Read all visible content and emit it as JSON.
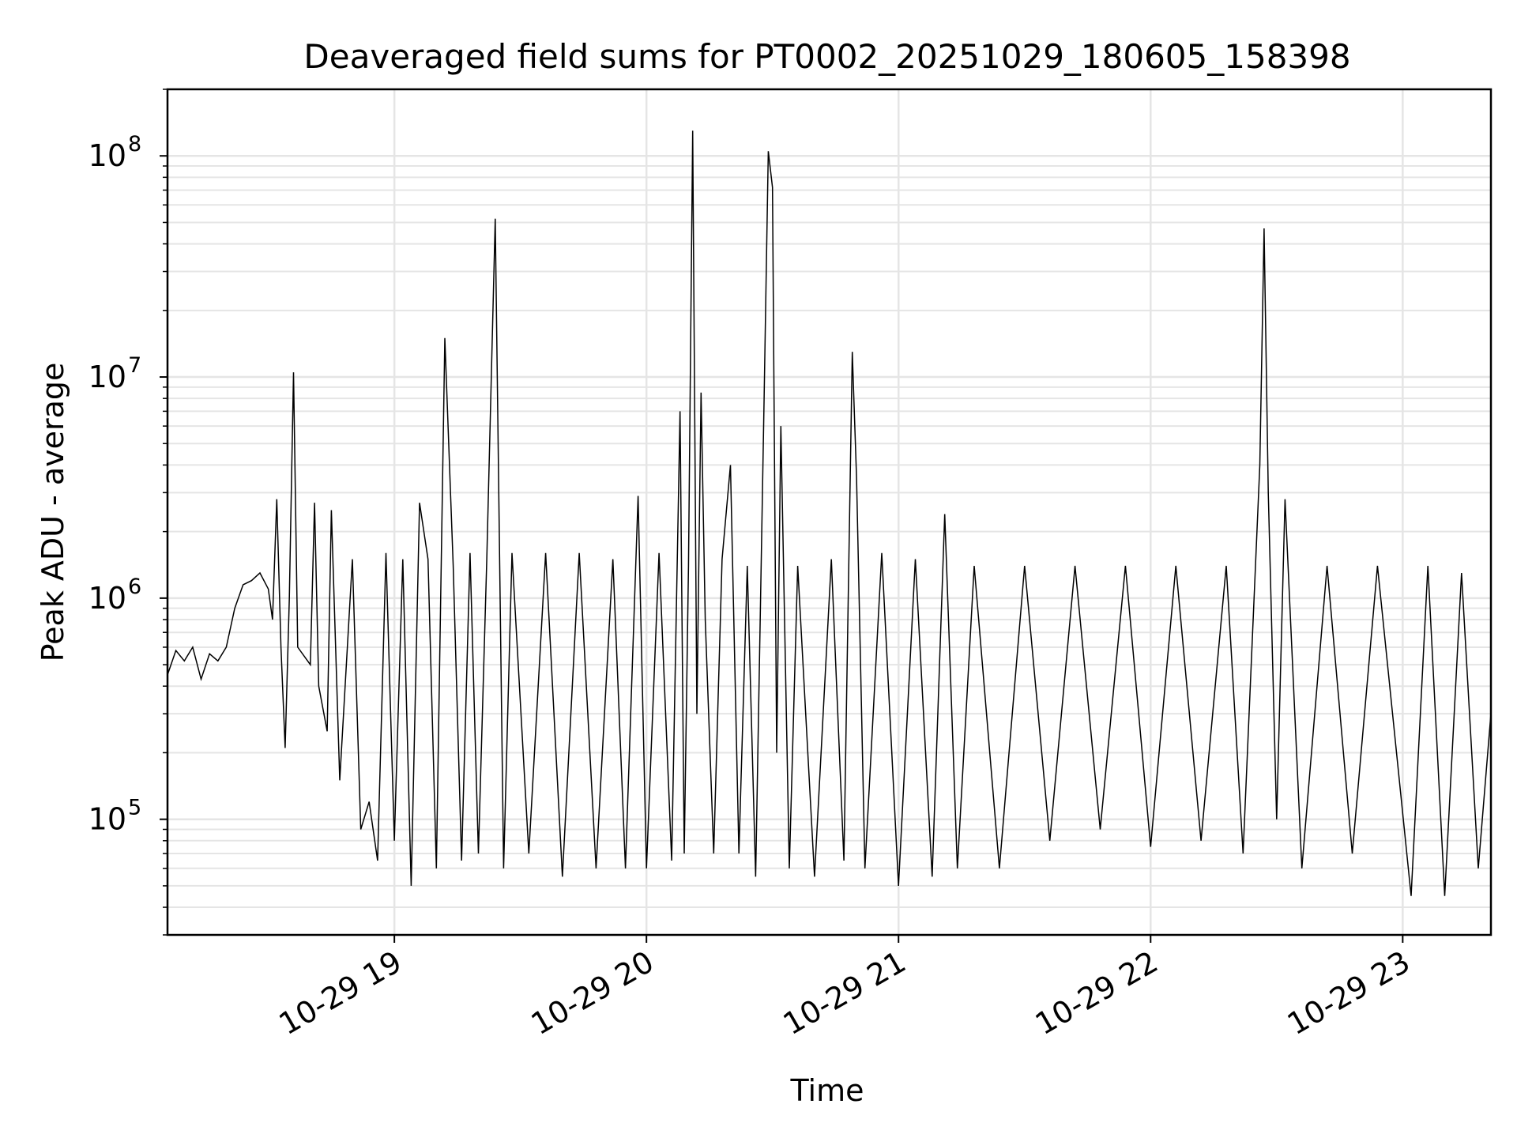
{
  "chart_data": {
    "type": "line",
    "title": "Deaveraged field sums for PT0002_20251029_180605_158398",
    "xlabel": "Time",
    "ylabel": "Peak ADU - average",
    "y_scale": "log",
    "ylim": [
      30000,
      200000000
    ],
    "xlim": [
      "2025-10-29 18:06",
      "2025-10-29 23:21"
    ],
    "x_ticks": [
      {
        "t": "2025-10-29 19:00",
        "label": "10-29 19"
      },
      {
        "t": "2025-10-29 20:00",
        "label": "10-29 20"
      },
      {
        "t": "2025-10-29 21:00",
        "label": "10-29 21"
      },
      {
        "t": "2025-10-29 22:00",
        "label": "10-29 22"
      },
      {
        "t": "2025-10-29 23:00",
        "label": "10-29 23"
      }
    ],
    "y_ticks": [
      {
        "value": 100000,
        "base": "10",
        "exp": "5"
      },
      {
        "value": 1000000,
        "base": "10",
        "exp": "6"
      },
      {
        "value": 10000000,
        "base": "10",
        "exp": "7"
      },
      {
        "value": 100000000,
        "base": "10",
        "exp": "8"
      }
    ],
    "grid": true,
    "line_color": "#000000",
    "grid_color": "#e5e5e5",
    "series": [
      {
        "points": [
          [
            "2025-10-29 18:06",
            450000
          ],
          [
            "2025-10-29 18:08",
            580000
          ],
          [
            "2025-10-29 18:10",
            520000
          ],
          [
            "2025-10-29 18:12",
            600000
          ],
          [
            "2025-10-29 18:14",
            430000
          ],
          [
            "2025-10-29 18:16",
            560000
          ],
          [
            "2025-10-29 18:18",
            520000
          ],
          [
            "2025-10-29 18:20",
            600000
          ],
          [
            "2025-10-29 18:22",
            900000
          ],
          [
            "2025-10-29 18:24",
            1150000
          ],
          [
            "2025-10-29 18:26",
            1200000
          ],
          [
            "2025-10-29 18:28",
            1300000
          ],
          [
            "2025-10-29 18:30",
            1100000
          ],
          [
            "2025-10-29 18:31",
            800000
          ],
          [
            "2025-10-29 18:32",
            2800000
          ],
          [
            "2025-10-29 18:33",
            600000
          ],
          [
            "2025-10-29 18:34",
            210000
          ],
          [
            "2025-10-29 18:35",
            1000000
          ],
          [
            "2025-10-29 18:36",
            10500000
          ],
          [
            "2025-10-29 18:37",
            600000
          ],
          [
            "2025-10-29 18:40",
            500000
          ],
          [
            "2025-10-29 18:41",
            2700000
          ],
          [
            "2025-10-29 18:42",
            400000
          ],
          [
            "2025-10-29 18:44",
            250000
          ],
          [
            "2025-10-29 18:45",
            2500000
          ],
          [
            "2025-10-29 18:47",
            150000
          ],
          [
            "2025-10-29 18:50",
            1500000
          ],
          [
            "2025-10-29 18:52",
            90000
          ],
          [
            "2025-10-29 18:54",
            120000
          ],
          [
            "2025-10-29 18:56",
            65000
          ],
          [
            "2025-10-29 18:58",
            1600000
          ],
          [
            "2025-10-29 19:00",
            80000
          ],
          [
            "2025-10-29 19:02",
            1500000
          ],
          [
            "2025-10-29 19:04",
            50000
          ],
          [
            "2025-10-29 19:06",
            2700000
          ],
          [
            "2025-10-29 19:08",
            1500000
          ],
          [
            "2025-10-29 19:10",
            60000
          ],
          [
            "2025-10-29 19:12",
            15000000
          ],
          [
            "2025-10-29 19:14",
            1400000
          ],
          [
            "2025-10-29 19:16",
            65000
          ],
          [
            "2025-10-29 19:18",
            1600000
          ],
          [
            "2025-10-29 19:20",
            70000
          ],
          [
            "2025-10-29 19:22",
            1500000
          ],
          [
            "2025-10-29 19:24",
            52000000
          ],
          [
            "2025-10-29 19:26",
            60000
          ],
          [
            "2025-10-29 19:28",
            1600000
          ],
          [
            "2025-10-29 19:32",
            70000
          ],
          [
            "2025-10-29 19:36",
            1600000
          ],
          [
            "2025-10-29 19:40",
            55000
          ],
          [
            "2025-10-29 19:44",
            1600000
          ],
          [
            "2025-10-29 19:48",
            60000
          ],
          [
            "2025-10-29 19:52",
            1500000
          ],
          [
            "2025-10-29 19:55",
            60000
          ],
          [
            "2025-10-29 19:58",
            2900000
          ],
          [
            "2025-10-29 20:00",
            60000
          ],
          [
            "2025-10-29 20:03",
            1600000
          ],
          [
            "2025-10-29 20:06",
            65000
          ],
          [
            "2025-10-29 20:08",
            7000000
          ],
          [
            "2025-10-29 20:09",
            70000
          ],
          [
            "2025-10-29 20:10",
            1400000
          ],
          [
            "2025-10-29 20:11",
            130000000
          ],
          [
            "2025-10-29 20:12",
            300000
          ],
          [
            "2025-10-29 20:13",
            8500000
          ],
          [
            "2025-10-29 20:14",
            800000
          ],
          [
            "2025-10-29 20:16",
            70000
          ],
          [
            "2025-10-29 20:18",
            1500000
          ],
          [
            "2025-10-29 20:20",
            4000000
          ],
          [
            "2025-10-29 20:22",
            70000
          ],
          [
            "2025-10-29 20:24",
            1400000
          ],
          [
            "2025-10-29 20:26",
            55000
          ],
          [
            "2025-10-29 20:28",
            8000000
          ],
          [
            "2025-10-29 20:29",
            105000000
          ],
          [
            "2025-10-29 20:30",
            72000000
          ],
          [
            "2025-10-29 20:31",
            200000
          ],
          [
            "2025-10-29 20:32",
            6000000
          ],
          [
            "2025-10-29 20:34",
            60000
          ],
          [
            "2025-10-29 20:36",
            1400000
          ],
          [
            "2025-10-29 20:40",
            55000
          ],
          [
            "2025-10-29 20:44",
            1500000
          ],
          [
            "2025-10-29 20:47",
            65000
          ],
          [
            "2025-10-29 20:49",
            13000000
          ],
          [
            "2025-10-29 20:50",
            3500000
          ],
          [
            "2025-10-29 20:52",
            60000
          ],
          [
            "2025-10-29 20:56",
            1600000
          ],
          [
            "2025-10-29 21:00",
            50000
          ],
          [
            "2025-10-29 21:04",
            1500000
          ],
          [
            "2025-10-29 21:08",
            55000
          ],
          [
            "2025-10-29 21:11",
            2400000
          ],
          [
            "2025-10-29 21:14",
            60000
          ],
          [
            "2025-10-29 21:18",
            1400000
          ],
          [
            "2025-10-29 21:24",
            60000
          ],
          [
            "2025-10-29 21:30",
            1400000
          ],
          [
            "2025-10-29 21:36",
            80000
          ],
          [
            "2025-10-29 21:42",
            1400000
          ],
          [
            "2025-10-29 21:48",
            90000
          ],
          [
            "2025-10-29 21:54",
            1400000
          ],
          [
            "2025-10-29 22:00",
            75000
          ],
          [
            "2025-10-29 22:06",
            1400000
          ],
          [
            "2025-10-29 22:12",
            80000
          ],
          [
            "2025-10-29 22:18",
            1400000
          ],
          [
            "2025-10-29 22:22",
            70000
          ],
          [
            "2025-10-29 22:26",
            4000000
          ],
          [
            "2025-10-29 22:27",
            47000000
          ],
          [
            "2025-10-29 22:28",
            3000000
          ],
          [
            "2025-10-29 22:30",
            100000
          ],
          [
            "2025-10-29 22:32",
            2800000
          ],
          [
            "2025-10-29 22:36",
            60000
          ],
          [
            "2025-10-29 22:42",
            1400000
          ],
          [
            "2025-10-29 22:48",
            70000
          ],
          [
            "2025-10-29 22:54",
            1400000
          ],
          [
            "2025-10-29 23:02",
            45000
          ],
          [
            "2025-10-29 23:06",
            1400000
          ],
          [
            "2025-10-29 23:10",
            45000
          ],
          [
            "2025-10-29 23:14",
            1300000
          ],
          [
            "2025-10-29 23:18",
            60000
          ],
          [
            "2025-10-29 23:21",
            300000
          ]
        ]
      }
    ]
  }
}
